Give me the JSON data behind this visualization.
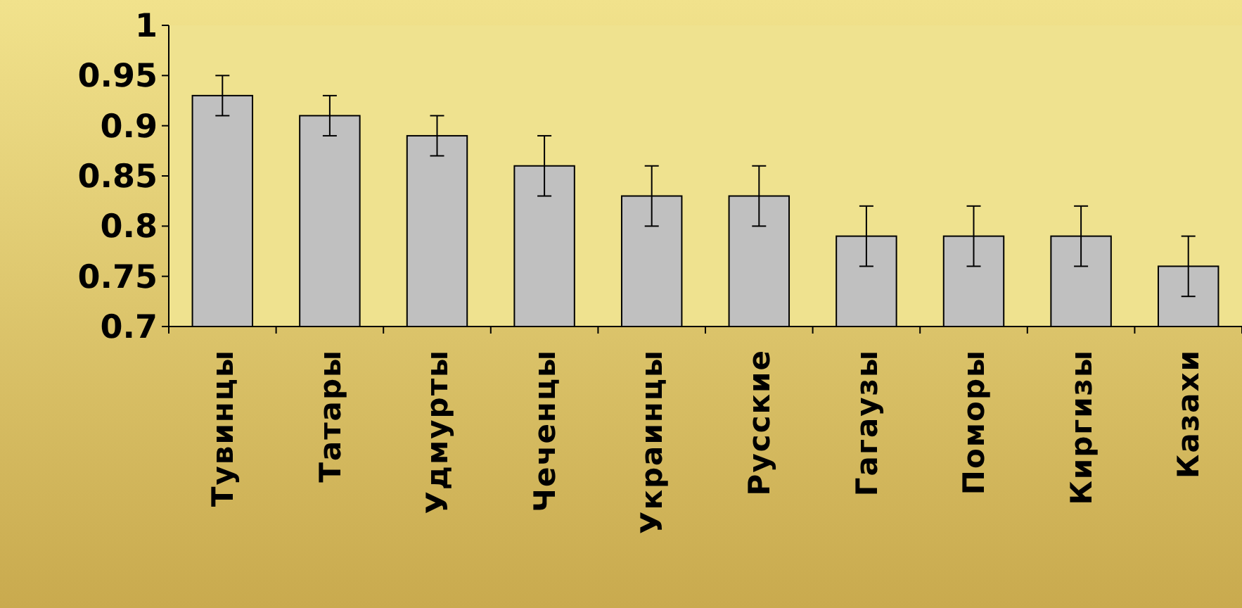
{
  "chart_data": {
    "type": "bar",
    "categories": [
      "Тувинцы",
      "Татары",
      "Удмурты",
      "Чеченцы",
      "Украинцы",
      "Русские",
      "Гагаузы",
      "Поморы",
      "Киргизы",
      "Казахи"
    ],
    "values": [
      0.93,
      0.91,
      0.89,
      0.86,
      0.83,
      0.83,
      0.79,
      0.79,
      0.79,
      0.76
    ],
    "errors": [
      0.02,
      0.02,
      0.02,
      0.03,
      0.03,
      0.03,
      0.03,
      0.03,
      0.03,
      0.03
    ],
    "color": "#c0c0c0",
    "ylim": [
      0.7,
      1
    ],
    "yticks": [
      {
        "value": 0.7,
        "label": "0.7"
      },
      {
        "value": 0.75,
        "label": "0.75"
      },
      {
        "value": 0.8,
        "label": "0.8"
      },
      {
        "value": 0.85,
        "label": "0.85"
      },
      {
        "value": 0.9,
        "label": "0.9"
      },
      {
        "value": 0.95,
        "label": "0.95"
      },
      {
        "value": 1,
        "label": "1"
      }
    ],
    "grid": false
  }
}
